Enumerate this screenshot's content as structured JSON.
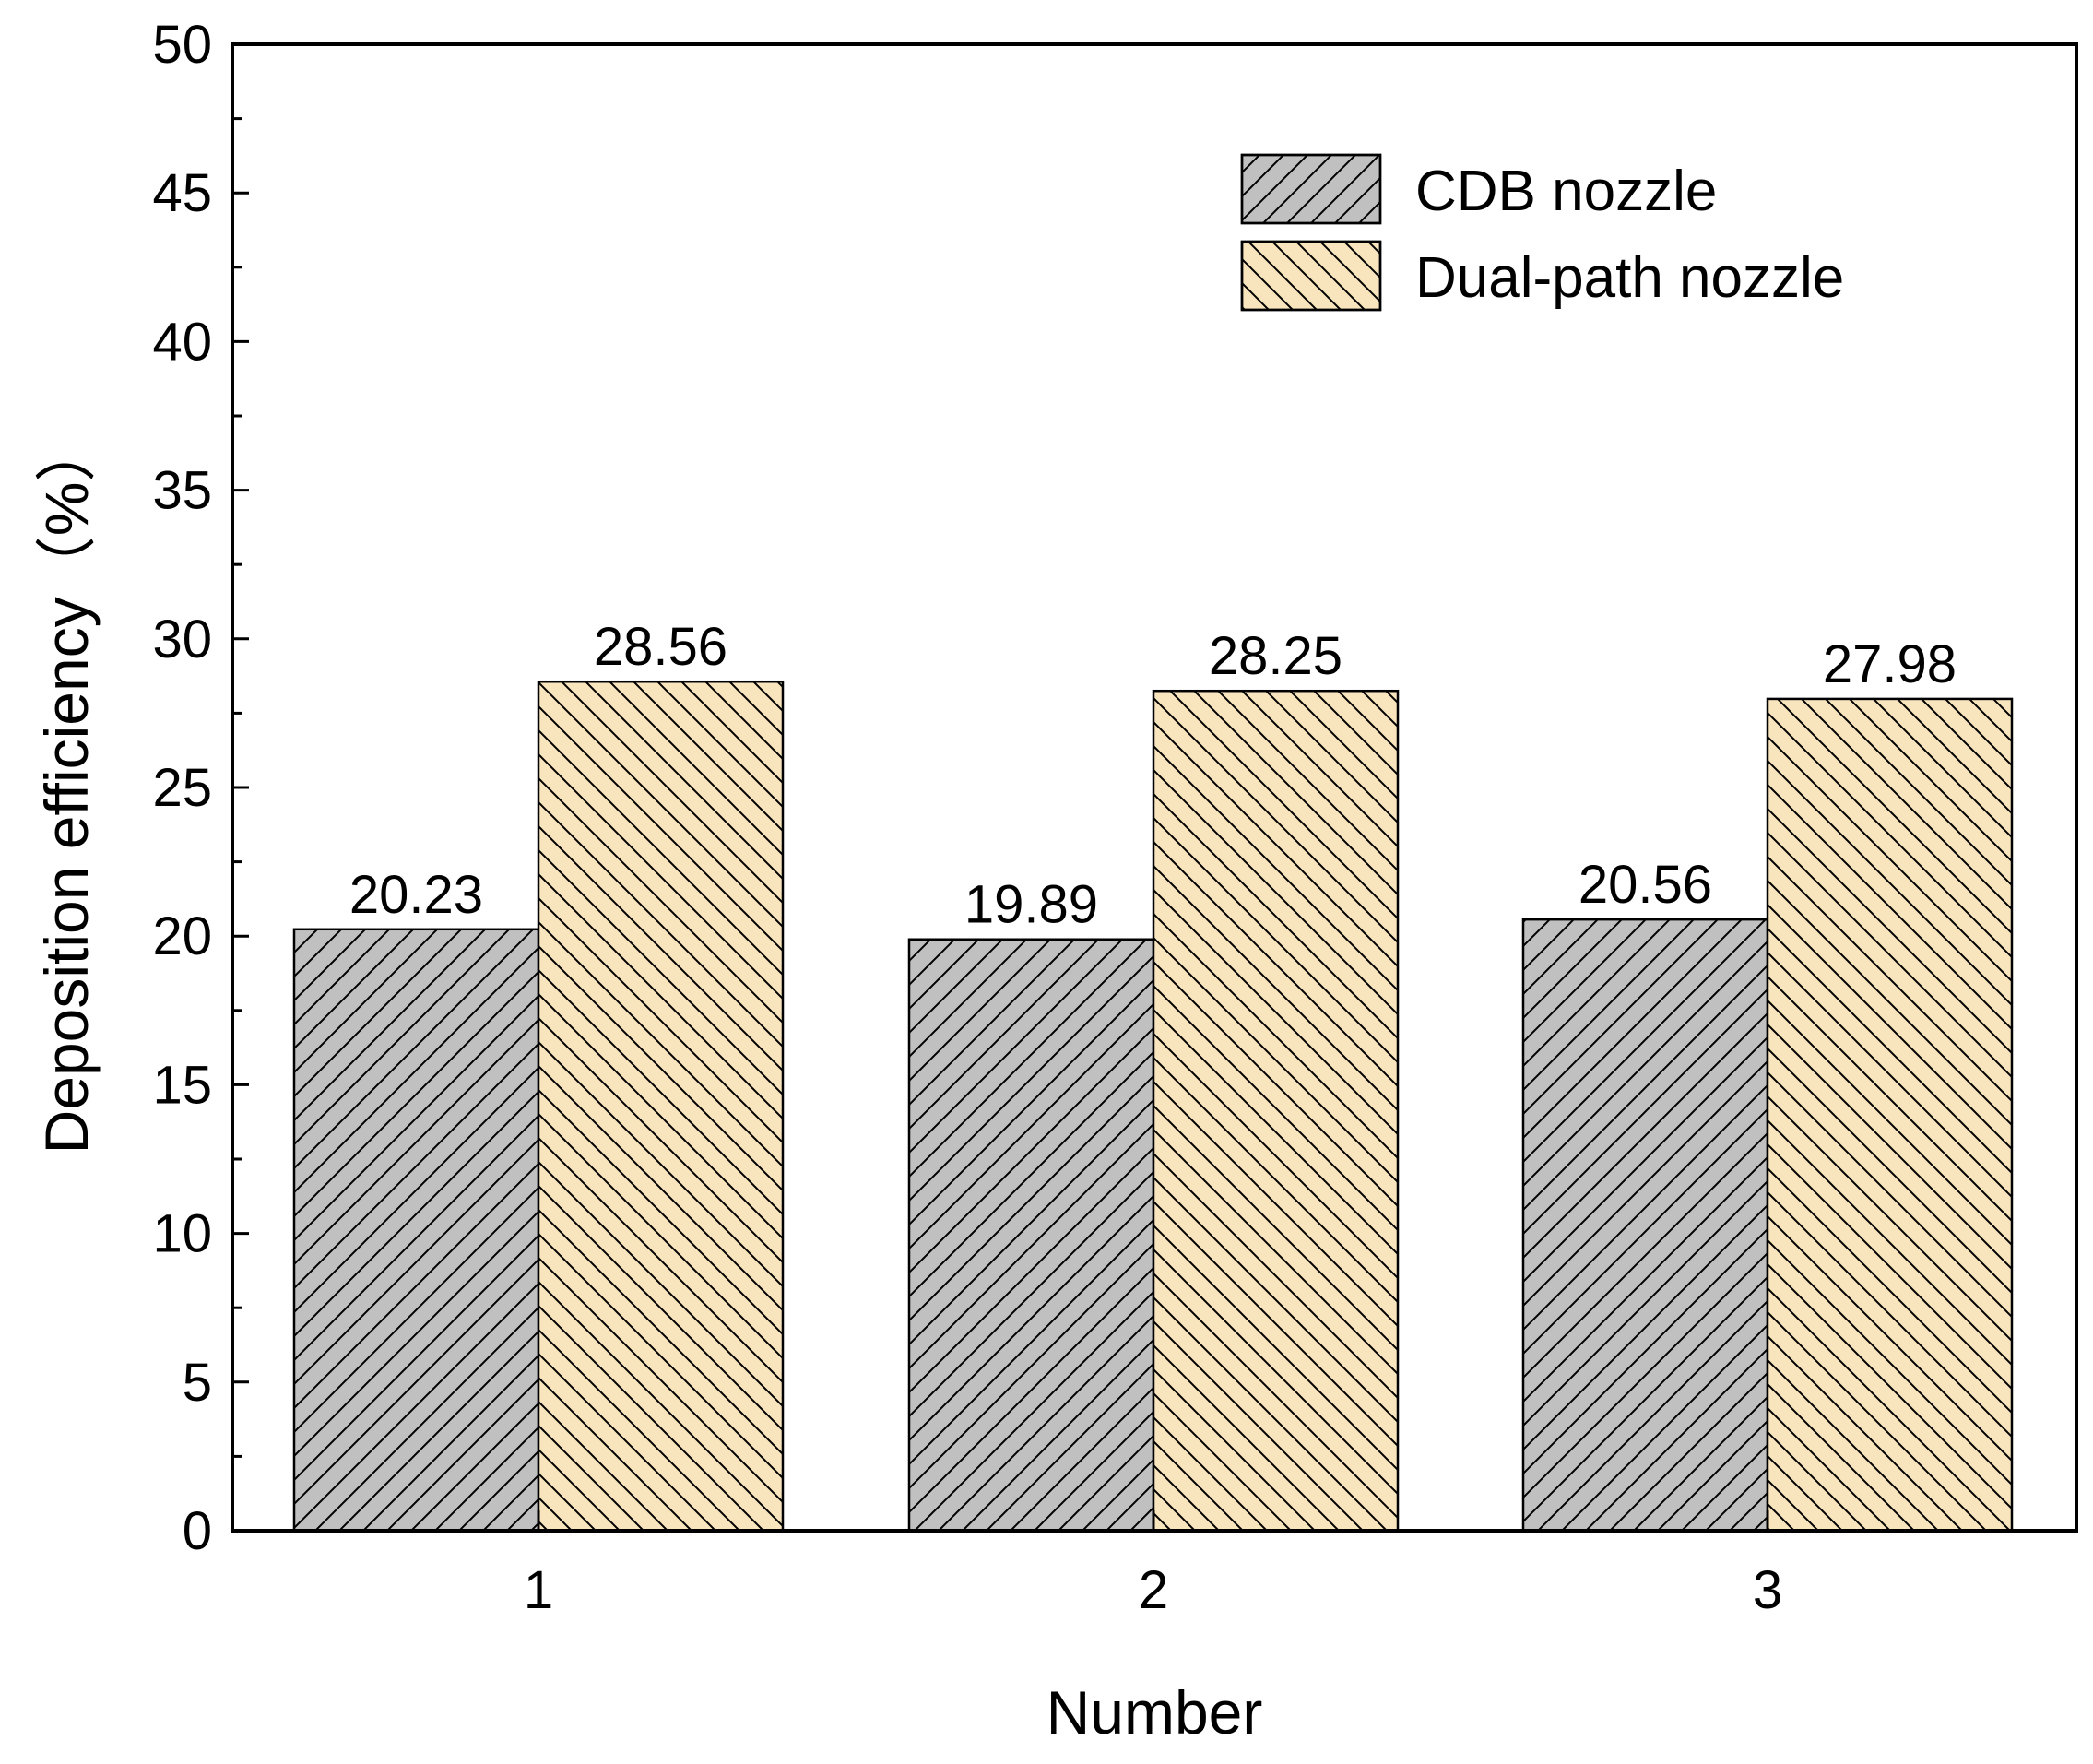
{
  "chart_data": {
    "type": "bar",
    "title": "",
    "xlabel": "Number",
    "ylabel": "Deposition efficiency（%）",
    "categories": [
      "1",
      "2",
      "3"
    ],
    "series": [
      {
        "name": "CDB nozzle",
        "values": [
          20.23,
          19.89,
          20.56
        ],
        "labels": [
          "20.23",
          "19.89",
          "20.56"
        ],
        "color": "#c0c0c0",
        "hatch": "forward-diagonal"
      },
      {
        "name": "Dual-path nozzle",
        "values": [
          28.56,
          28.25,
          27.98
        ],
        "labels": [
          "28.56",
          "28.25",
          "27.98"
        ],
        "color": "#f8e4bd",
        "hatch": "back-diagonal"
      }
    ],
    "ylim": [
      0,
      50
    ],
    "yticks": [
      "0",
      "5",
      "10",
      "15",
      "20",
      "25",
      "30",
      "35",
      "40",
      "45",
      "50"
    ],
    "grid": false,
    "legend_position": "top-right"
  }
}
